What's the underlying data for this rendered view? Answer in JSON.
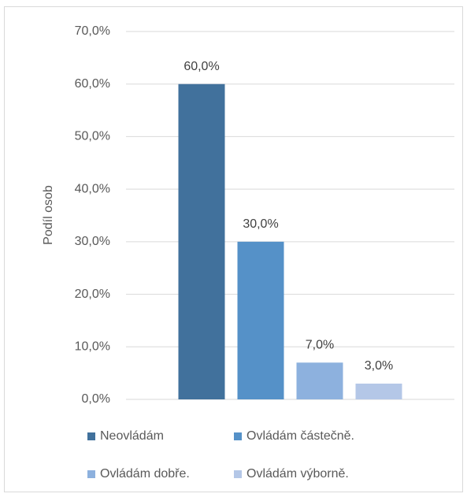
{
  "chart_data": {
    "type": "bar",
    "y_label": "Podíl osob",
    "series": [
      {
        "name": "Neovládám",
        "color": "#41719c",
        "values": [
          60
        ],
        "value_labels": [
          "60,0%"
        ]
      },
      {
        "name": "Ovládám částečně.",
        "color": "#5591c8",
        "values": [
          30
        ],
        "value_labels": [
          "30,0%"
        ]
      },
      {
        "name": "Ovládám dobře.",
        "color": "#8db1de",
        "values": [
          7
        ],
        "value_labels": [
          "7,0%"
        ]
      },
      {
        "name": "Ovládám výborně.",
        "color": "#b4c7e7",
        "values": [
          3
        ],
        "value_labels": [
          "3,0%"
        ]
      }
    ],
    "ylim": [
      0,
      70
    ],
    "yticks": [
      {
        "value": 0,
        "label": "0,0%"
      },
      {
        "value": 10,
        "label": "10,0%"
      },
      {
        "value": 20,
        "label": "20,0%"
      },
      {
        "value": 30,
        "label": "30,0%"
      },
      {
        "value": 40,
        "label": "40,0%"
      },
      {
        "value": 50,
        "label": "50,0%"
      },
      {
        "value": 60,
        "label": "60,0%"
      },
      {
        "value": 70,
        "label": "70,0%"
      }
    ],
    "grid": true,
    "legend": "bottom"
  }
}
